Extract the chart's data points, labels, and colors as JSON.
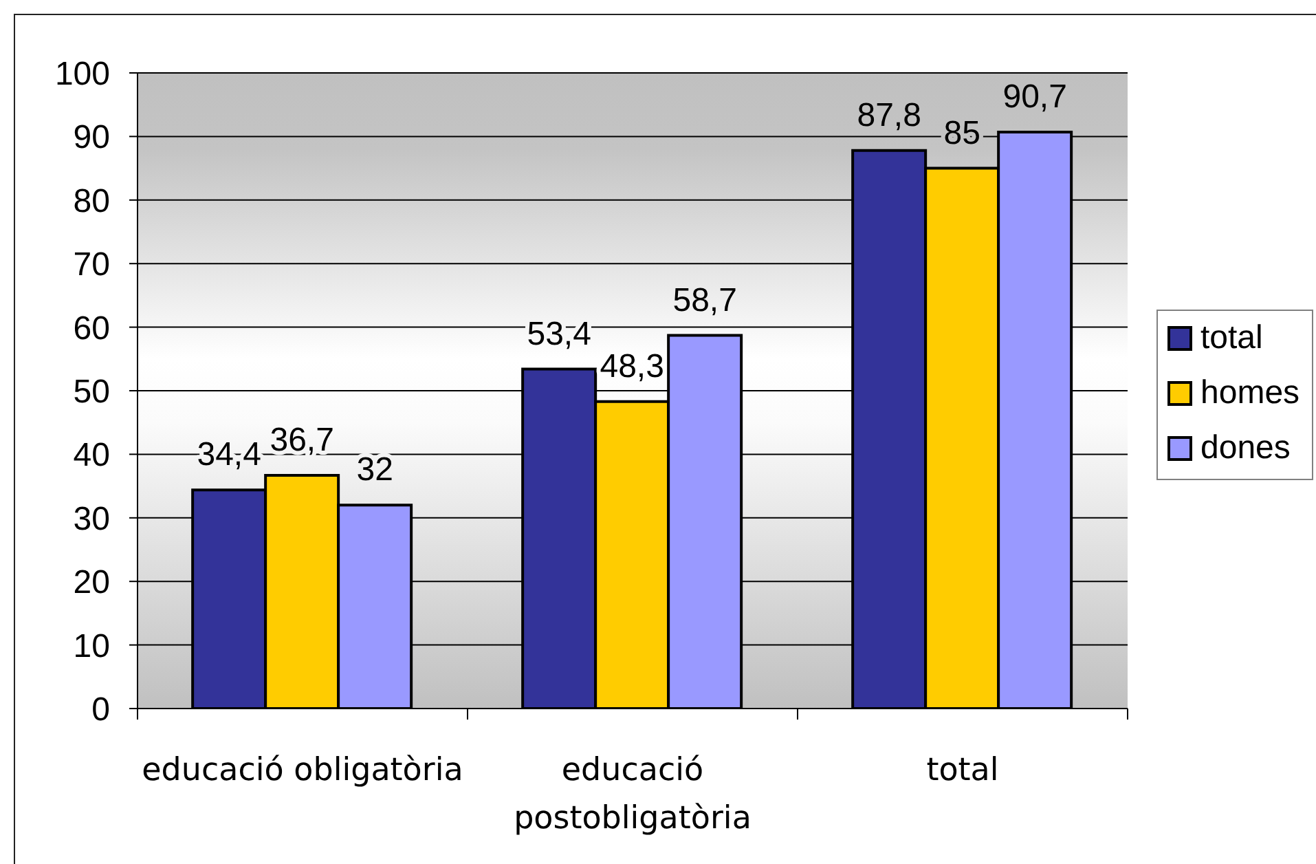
{
  "chart_data": {
    "type": "bar",
    "categories": [
      "educació obligatòria",
      "educació postobligatòria",
      "total"
    ],
    "series": [
      {
        "name": "total",
        "color": "#333399",
        "values": [
          34.4,
          53.4,
          87.8
        ],
        "value_labels": [
          "34,4",
          "53,4",
          "87,8"
        ]
      },
      {
        "name": "homes",
        "color": "#ffcc00",
        "values": [
          36.7,
          48.3,
          85
        ],
        "value_labels": [
          "36,7",
          "48,3",
          "85"
        ]
      },
      {
        "name": "dones",
        "color": "#9999ff",
        "values": [
          32,
          58.7,
          90.7
        ],
        "value_labels": [
          "32",
          "58,7",
          "90,7"
        ]
      }
    ],
    "ylim": [
      0,
      100
    ],
    "yticks": [
      0,
      10,
      20,
      30,
      40,
      50,
      60,
      70,
      80,
      90,
      100
    ],
    "grid": "y",
    "legend": "right"
  }
}
